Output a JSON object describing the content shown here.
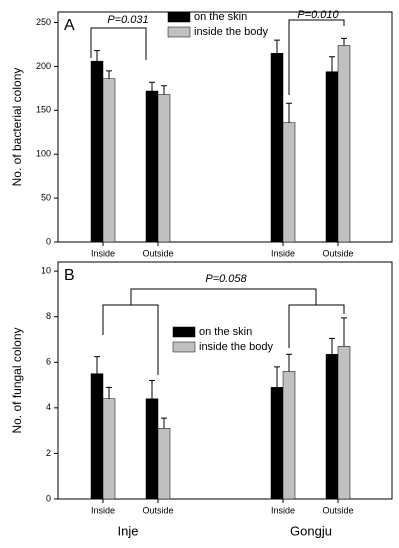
{
  "chart_data": [
    {
      "type": "bar",
      "panel_label": "A",
      "y_label": "No. of bacterial colony",
      "categories": [
        "Inside",
        "Outside",
        "Inside",
        "Outside"
      ],
      "series": [
        {
          "name": "on the skin",
          "color": "#000000",
          "values": [
            206,
            172,
            215,
            194
          ],
          "errors": [
            12,
            10,
            15,
            17
          ]
        },
        {
          "name": "inside the body",
          "color": "#c0c0c0",
          "values": [
            186,
            168,
            136,
            224
          ],
          "errors": [
            9,
            10,
            22,
            8
          ]
        }
      ],
      "ylim": [
        0,
        262
      ],
      "yticks": [
        0,
        50,
        100,
        150,
        200,
        250
      ],
      "annotations": [
        "P=0.031",
        "P=0.010"
      ]
    },
    {
      "type": "bar",
      "panel_label": "B",
      "y_label": "No. of fungal colony",
      "categories": [
        "Inside",
        "Outside",
        "Inside",
        "Outside"
      ],
      "series": [
        {
          "name": "on the skin",
          "color": "#000000",
          "values": [
            5.5,
            4.4,
            4.9,
            6.35
          ],
          "errors": [
            0.75,
            0.8,
            0.9,
            0.7
          ]
        },
        {
          "name": "inside the body",
          "color": "#c0c0c0",
          "values": [
            4.4,
            3.1,
            5.6,
            6.7
          ],
          "errors": [
            0.5,
            0.45,
            0.75,
            1.25
          ]
        }
      ],
      "ylim": [
        0,
        10.4
      ],
      "yticks": [
        0,
        2,
        4,
        6,
        8,
        10
      ],
      "annotations": [
        "P=0.058"
      ]
    }
  ],
  "groups": [
    "Inje",
    "Gongju"
  ]
}
